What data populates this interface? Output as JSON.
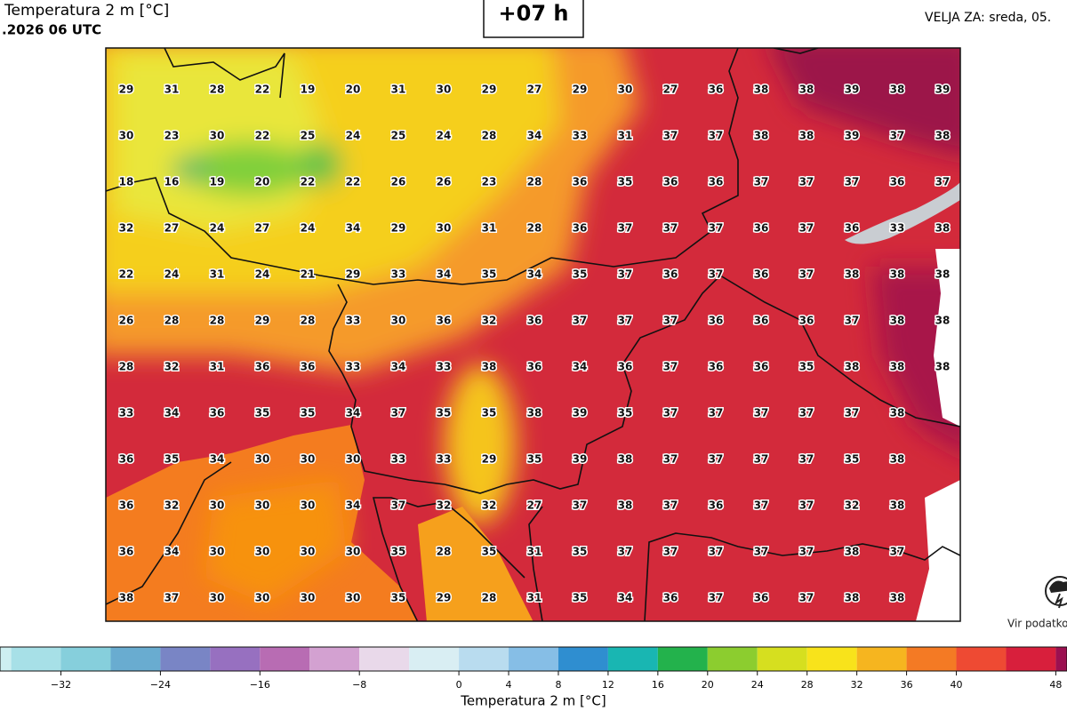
{
  "header": {
    "title": "Temperatura 2 m [°C]",
    "run": ".2026 06 UTC",
    "lead": "+07 h",
    "valid": "VELJA ZA: sreda, 05."
  },
  "source": "Vir podatko",
  "grid": {
    "rows": [
      [
        29,
        31,
        28,
        22,
        19,
        20,
        31,
        30,
        29,
        27,
        29,
        30,
        27,
        36,
        38,
        38,
        39,
        38,
        39
      ],
      [
        30,
        23,
        30,
        22,
        25,
        24,
        25,
        24,
        28,
        34,
        33,
        31,
        37,
        37,
        38,
        38,
        39,
        37,
        38
      ],
      [
        18,
        16,
        19,
        20,
        22,
        22,
        26,
        26,
        23,
        28,
        36,
        35,
        36,
        36,
        37,
        37,
        37,
        36,
        37
      ],
      [
        32,
        27,
        24,
        27,
        24,
        34,
        29,
        30,
        31,
        28,
        36,
        37,
        37,
        37,
        36,
        37,
        36,
        33,
        38
      ],
      [
        22,
        24,
        31,
        24,
        21,
        29,
        33,
        34,
        35,
        34,
        35,
        37,
        36,
        37,
        36,
        37,
        38,
        38,
        38
      ],
      [
        26,
        28,
        28,
        29,
        28,
        33,
        30,
        36,
        32,
        36,
        37,
        37,
        37,
        36,
        36,
        36,
        37,
        38,
        38
      ],
      [
        28,
        32,
        31,
        36,
        36,
        33,
        34,
        33,
        38,
        36,
        34,
        36,
        37,
        36,
        36,
        35,
        38,
        38,
        38
      ],
      [
        33,
        34,
        36,
        35,
        35,
        34,
        37,
        35,
        35,
        38,
        39,
        35,
        37,
        37,
        37,
        37,
        37,
        38
      ],
      [
        36,
        35,
        34,
        30,
        30,
        30,
        33,
        33,
        29,
        35,
        39,
        38,
        37,
        37,
        37,
        37,
        35,
        38
      ],
      [
        36,
        32,
        30,
        30,
        30,
        34,
        37,
        32,
        32,
        27,
        37,
        38,
        37,
        36,
        37,
        37,
        32,
        38
      ],
      [
        36,
        34,
        30,
        30,
        30,
        30,
        35,
        28,
        35,
        31,
        35,
        37,
        37,
        37,
        37,
        37,
        38,
        37
      ],
      [
        38,
        37,
        30,
        30,
        30,
        30,
        35,
        29,
        28,
        31,
        35,
        34,
        36,
        37,
        36,
        37,
        38,
        38
      ]
    ]
  },
  "colorbar": {
    "label": "Temperatura 2 m [°C]",
    "range": [
      -36.9,
      48.9
    ],
    "ticks": [
      {
        "value": -32,
        "label": "−32"
      },
      {
        "value": -24,
        "label": "−24"
      },
      {
        "value": -16,
        "label": "−16"
      },
      {
        "value": -8,
        "label": "−8"
      },
      0,
      4,
      8,
      12,
      16,
      20,
      24,
      28,
      32,
      36,
      40,
      48
    ]
  }
}
